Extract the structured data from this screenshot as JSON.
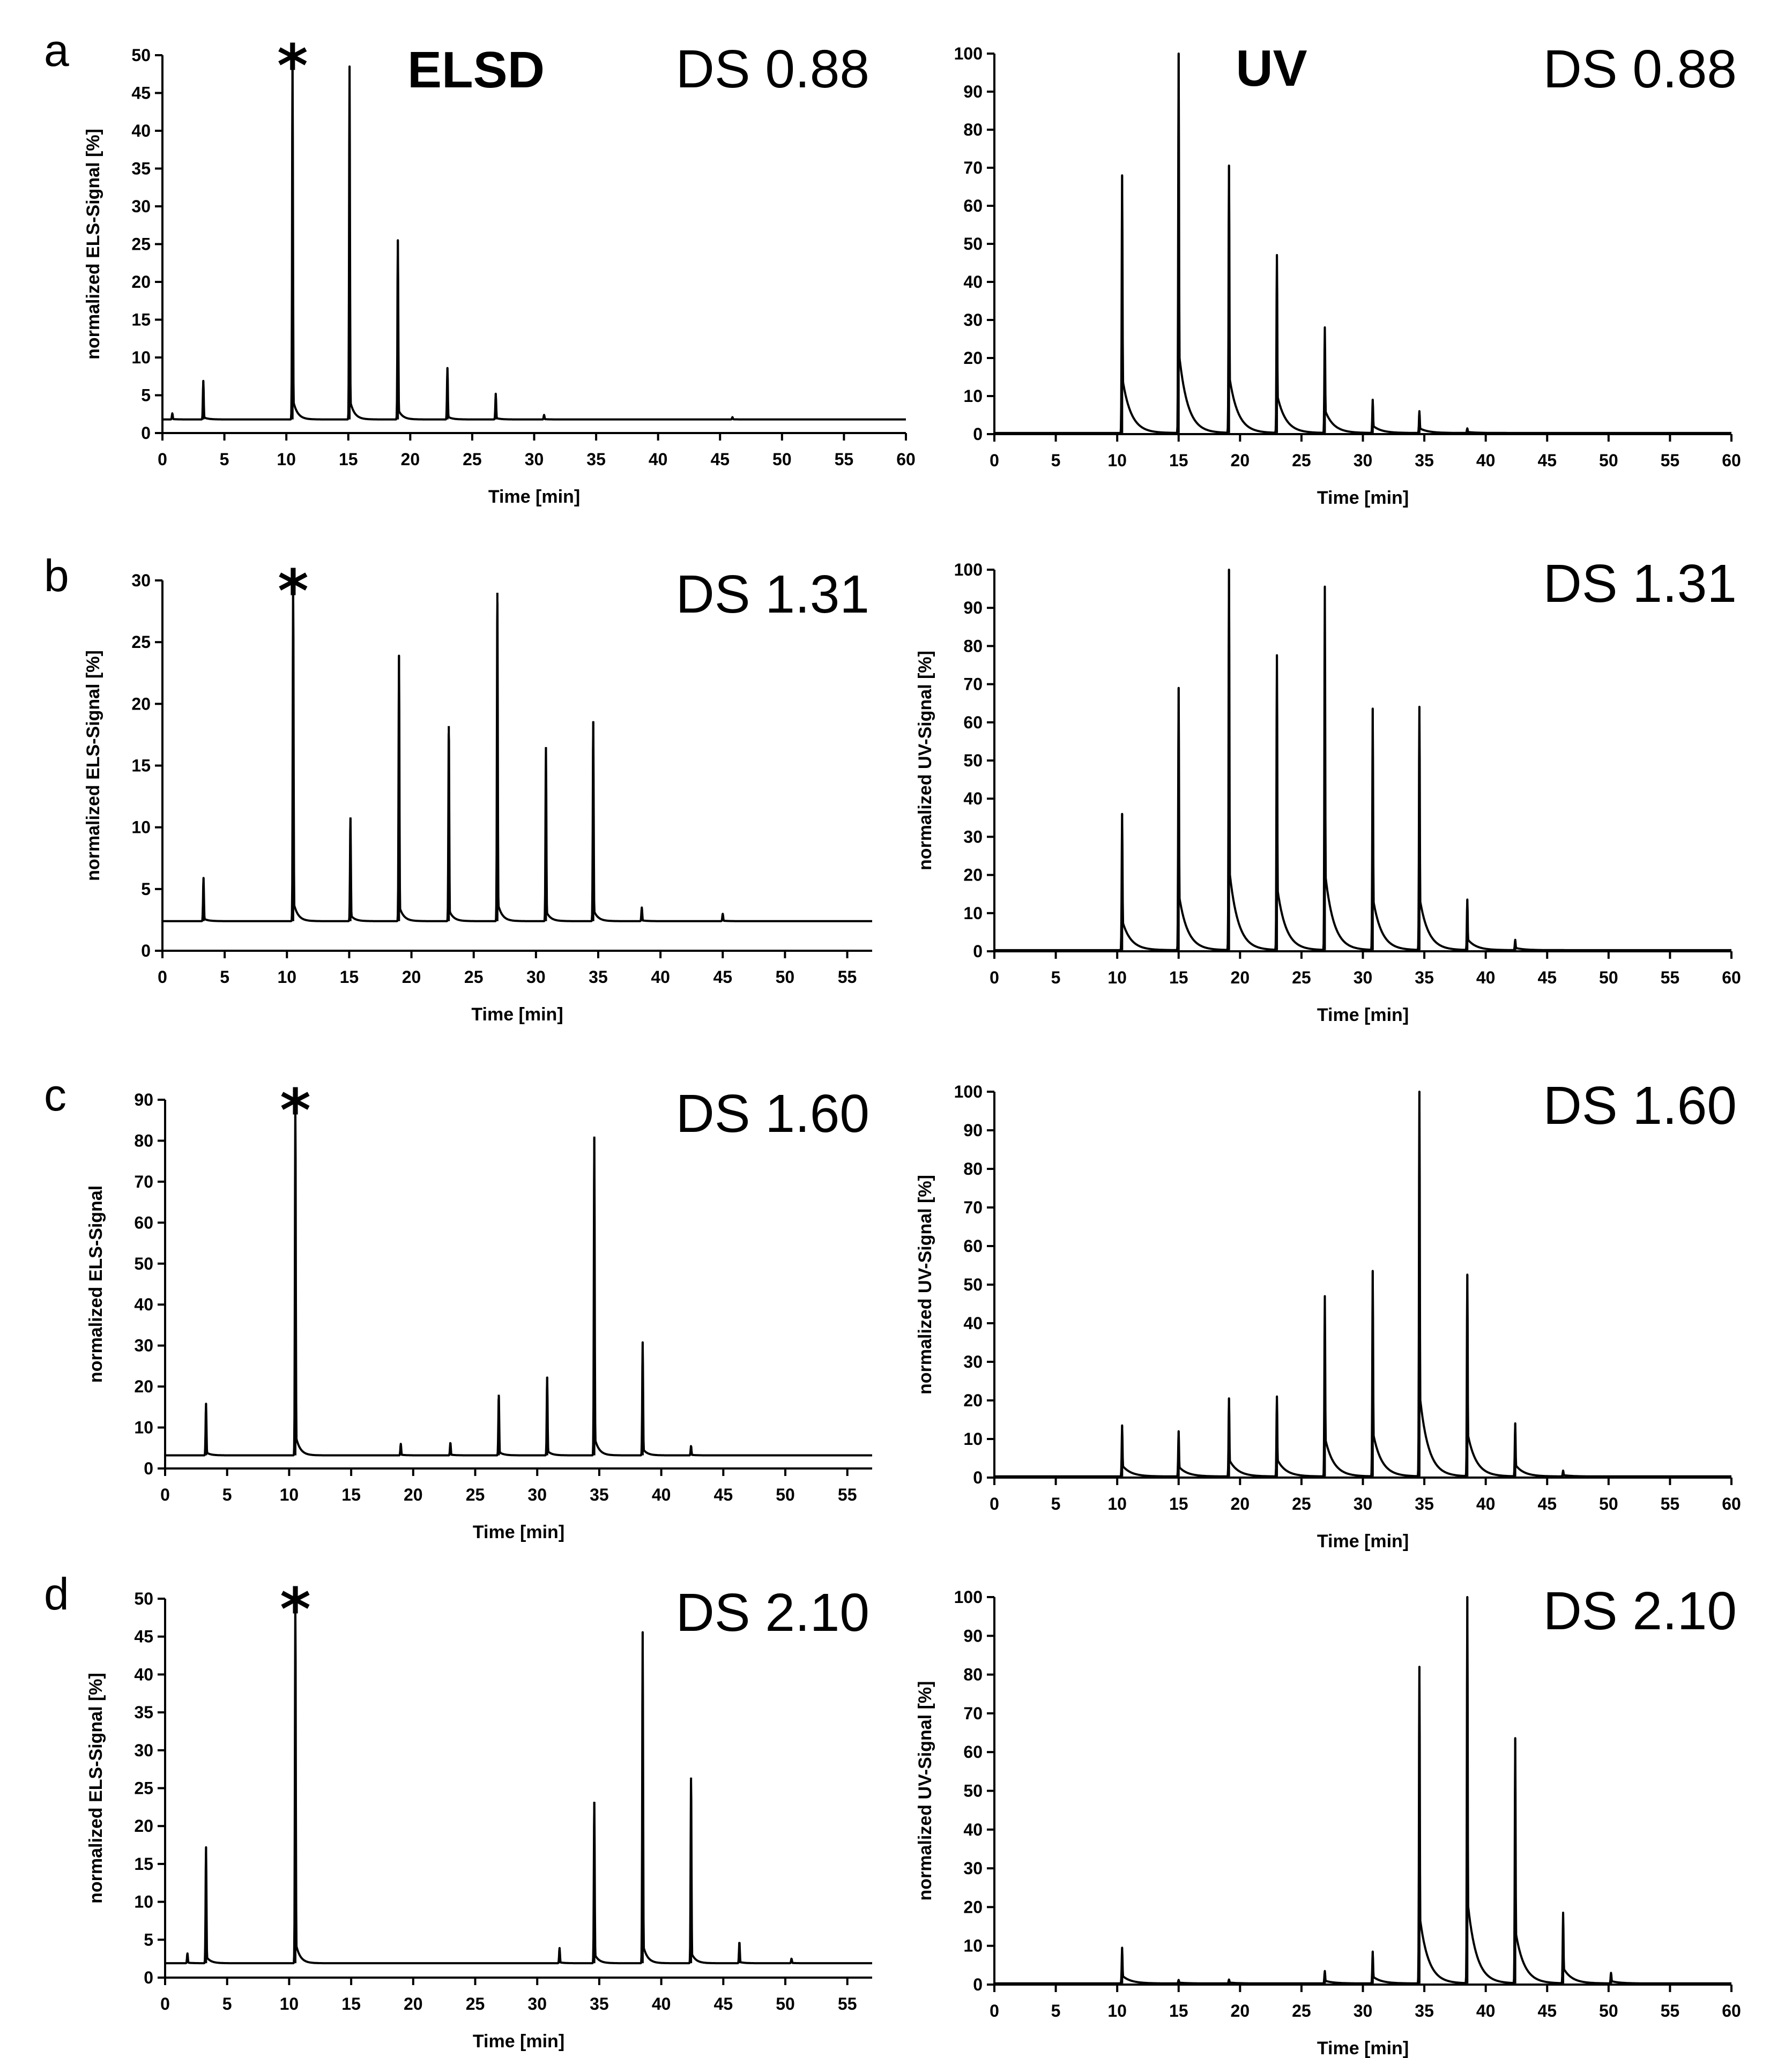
{
  "chart_data": [
    {
      "type": "line",
      "panel_letter": "a",
      "detector_label": "ELSD",
      "ds_label": "DS 0.88",
      "marker": "*",
      "xlabel": "Time [min]",
      "ylabel": "normalized ELS-Signal [%]",
      "xlim": [
        0,
        60
      ],
      "ylim": [
        0,
        50
      ],
      "xticks": [
        0,
        5,
        10,
        15,
        20,
        25,
        30,
        35,
        40,
        45,
        50,
        55,
        60
      ],
      "yticks": [
        0,
        5,
        10,
        15,
        20,
        25,
        30,
        35,
        40,
        45,
        50
      ],
      "baseline": 1.8,
      "marker_x": 10.5,
      "peaks": [
        {
          "x": 0.8,
          "y": 2.6
        },
        {
          "x": 3.3,
          "y": 6.9
        },
        {
          "x": 10.5,
          "y": 50
        },
        {
          "x": 15.1,
          "y": 48.5
        },
        {
          "x": 19.0,
          "y": 25.5
        },
        {
          "x": 23.0,
          "y": 8.6
        },
        {
          "x": 26.9,
          "y": 5.2
        },
        {
          "x": 30.8,
          "y": 2.4
        },
        {
          "x": 46.0,
          "y": 2.1
        }
      ]
    },
    {
      "type": "line",
      "panel_letter": "",
      "detector_label": "UV",
      "ds_label": "DS 0.88",
      "marker": "",
      "xlabel": "Time [min]",
      "ylabel": "",
      "xlim": [
        0,
        60
      ],
      "ylim": [
        0,
        100
      ],
      "xticks": [
        0,
        5,
        10,
        15,
        20,
        25,
        30,
        35,
        40,
        45,
        50,
        55,
        60
      ],
      "yticks": [
        0,
        10,
        20,
        30,
        40,
        50,
        60,
        70,
        80,
        90,
        100
      ],
      "baseline": 0.3,
      "peaks": [
        {
          "x": 10.4,
          "y": 68
        },
        {
          "x": 15.0,
          "y": 100
        },
        {
          "x": 19.1,
          "y": 70.5
        },
        {
          "x": 23.0,
          "y": 47
        },
        {
          "x": 26.9,
          "y": 28
        },
        {
          "x": 30.8,
          "y": 9
        },
        {
          "x": 34.6,
          "y": 6
        },
        {
          "x": 38.5,
          "y": 1.5
        }
      ]
    },
    {
      "type": "line",
      "panel_letter": "b",
      "detector_label": "",
      "ds_label": "DS 1.31",
      "marker": "*",
      "xlabel": "Time [min]",
      "ylabel": "normalized ELS-Signal [%]",
      "xlim": [
        0,
        57
      ],
      "ylim": [
        0,
        30
      ],
      "xticks": [
        0,
        5,
        10,
        15,
        20,
        25,
        30,
        35,
        40,
        45,
        50,
        55
      ],
      "yticks": [
        0,
        5,
        10,
        15,
        20,
        25,
        30
      ],
      "baseline": 2.4,
      "marker_x": 10.5,
      "peaks": [
        {
          "x": 3.3,
          "y": 5.9
        },
        {
          "x": 10.5,
          "y": 30
        },
        {
          "x": 15.1,
          "y": 10.8
        },
        {
          "x": 19.0,
          "y": 23.9
        },
        {
          "x": 23.0,
          "y": 18.2
        },
        {
          "x": 26.9,
          "y": 29.0
        },
        {
          "x": 30.8,
          "y": 16.5
        },
        {
          "x": 34.6,
          "y": 18.6
        },
        {
          "x": 38.5,
          "y": 3.5
        },
        {
          "x": 45.0,
          "y": 3.0
        }
      ]
    },
    {
      "type": "line",
      "panel_letter": "",
      "detector_label": "",
      "ds_label": "DS 1.31",
      "marker": "",
      "xlabel": "Time [min]",
      "ylabel": "normalized UV-Signal [%]",
      "xlim": [
        0,
        60
      ],
      "ylim": [
        0,
        100
      ],
      "xticks": [
        0,
        5,
        10,
        15,
        20,
        25,
        30,
        35,
        40,
        45,
        50,
        55,
        60
      ],
      "yticks": [
        0,
        10,
        20,
        30,
        40,
        50,
        60,
        70,
        80,
        90,
        100
      ],
      "baseline": 0.3,
      "peaks": [
        {
          "x": 10.4,
          "y": 36
        },
        {
          "x": 15.0,
          "y": 69
        },
        {
          "x": 19.1,
          "y": 100
        },
        {
          "x": 23.0,
          "y": 77.5
        },
        {
          "x": 26.9,
          "y": 95.5
        },
        {
          "x": 30.8,
          "y": 63.5
        },
        {
          "x": 34.6,
          "y": 64
        },
        {
          "x": 38.5,
          "y": 13.5
        },
        {
          "x": 42.4,
          "y": 3
        }
      ]
    },
    {
      "type": "line",
      "panel_letter": "c",
      "detector_label": "",
      "ds_label": "DS 1.60",
      "marker": "*",
      "xlabel": "Time [min]",
      "ylabel": "normalized ELS-Signal",
      "xlim": [
        0,
        57
      ],
      "ylim": [
        0,
        90
      ],
      "xticks": [
        0,
        5,
        10,
        15,
        20,
        25,
        30,
        35,
        40,
        45,
        50,
        55
      ],
      "yticks": [
        0,
        10,
        20,
        30,
        40,
        50,
        60,
        70,
        80,
        90
      ],
      "baseline": 3.2,
      "marker_x": 10.5,
      "peaks": [
        {
          "x": 3.3,
          "y": 15.8
        },
        {
          "x": 10.5,
          "y": 90
        },
        {
          "x": 19.0,
          "y": 6.0
        },
        {
          "x": 23.0,
          "y": 6.3
        },
        {
          "x": 26.9,
          "y": 18.0
        },
        {
          "x": 30.8,
          "y": 22.3
        },
        {
          "x": 34.6,
          "y": 81.0
        },
        {
          "x": 38.5,
          "y": 30.8
        },
        {
          "x": 42.4,
          "y": 5.5
        }
      ]
    },
    {
      "type": "line",
      "panel_letter": "",
      "detector_label": "",
      "ds_label": "DS 1.60",
      "marker": "",
      "xlabel": "Time [min]",
      "ylabel": "normalized UV-Signal [%]",
      "xlim": [
        0,
        60
      ],
      "ylim": [
        0,
        100
      ],
      "xticks": [
        0,
        5,
        10,
        15,
        20,
        25,
        30,
        35,
        40,
        45,
        50,
        55,
        60
      ],
      "yticks": [
        0,
        10,
        20,
        30,
        40,
        50,
        60,
        70,
        80,
        90,
        100
      ],
      "baseline": 0.3,
      "peaks": [
        {
          "x": 10.4,
          "y": 13.5
        },
        {
          "x": 15.0,
          "y": 12
        },
        {
          "x": 19.1,
          "y": 20.5
        },
        {
          "x": 23.0,
          "y": 21
        },
        {
          "x": 26.9,
          "y": 47
        },
        {
          "x": 30.8,
          "y": 53.5
        },
        {
          "x": 34.6,
          "y": 100
        },
        {
          "x": 38.5,
          "y": 52.5
        },
        {
          "x": 42.4,
          "y": 14
        },
        {
          "x": 46.3,
          "y": 1.8
        }
      ]
    },
    {
      "type": "line",
      "panel_letter": "d",
      "detector_label": "",
      "ds_label": "DS 2.10",
      "marker": "*",
      "xlabel": "Time [min]",
      "ylabel": "normalized ELS-Signal [%]",
      "xlim": [
        0,
        57
      ],
      "ylim": [
        0,
        50
      ],
      "xticks": [
        0,
        5,
        10,
        15,
        20,
        25,
        30,
        35,
        40,
        45,
        50,
        55
      ],
      "yticks": [
        0,
        5,
        10,
        15,
        20,
        25,
        30,
        35,
        40,
        45,
        50
      ],
      "baseline": 1.9,
      "marker_x": 10.5,
      "peaks": [
        {
          "x": 1.8,
          "y": 3.2
        },
        {
          "x": 3.3,
          "y": 17.2
        },
        {
          "x": 10.5,
          "y": 50
        },
        {
          "x": 31.8,
          "y": 3.9
        },
        {
          "x": 34.6,
          "y": 23.2
        },
        {
          "x": 38.5,
          "y": 45.6
        },
        {
          "x": 42.4,
          "y": 26.4
        },
        {
          "x": 46.3,
          "y": 4.7
        },
        {
          "x": 50.5,
          "y": 2.5
        }
      ]
    },
    {
      "type": "line",
      "panel_letter": "",
      "detector_label": "",
      "ds_label": "DS 2.10",
      "marker": "",
      "xlabel": "Time [min]",
      "ylabel": "normalized UV-Signal [%]",
      "xlim": [
        0,
        60
      ],
      "ylim": [
        0,
        100
      ],
      "xticks": [
        0,
        5,
        10,
        15,
        20,
        25,
        30,
        35,
        40,
        45,
        50,
        55,
        60
      ],
      "yticks": [
        0,
        10,
        20,
        30,
        40,
        50,
        60,
        70,
        80,
        90,
        100
      ],
      "baseline": 0.3,
      "peaks": [
        {
          "x": 10.4,
          "y": 9.5
        },
        {
          "x": 15.0,
          "y": 1.2
        },
        {
          "x": 19.1,
          "y": 1.3
        },
        {
          "x": 26.9,
          "y": 3.5
        },
        {
          "x": 30.8,
          "y": 8.5
        },
        {
          "x": 34.6,
          "y": 82
        },
        {
          "x": 38.5,
          "y": 100
        },
        {
          "x": 42.4,
          "y": 63.5
        },
        {
          "x": 46.3,
          "y": 18.5
        },
        {
          "x": 50.2,
          "y": 3
        }
      ]
    }
  ]
}
